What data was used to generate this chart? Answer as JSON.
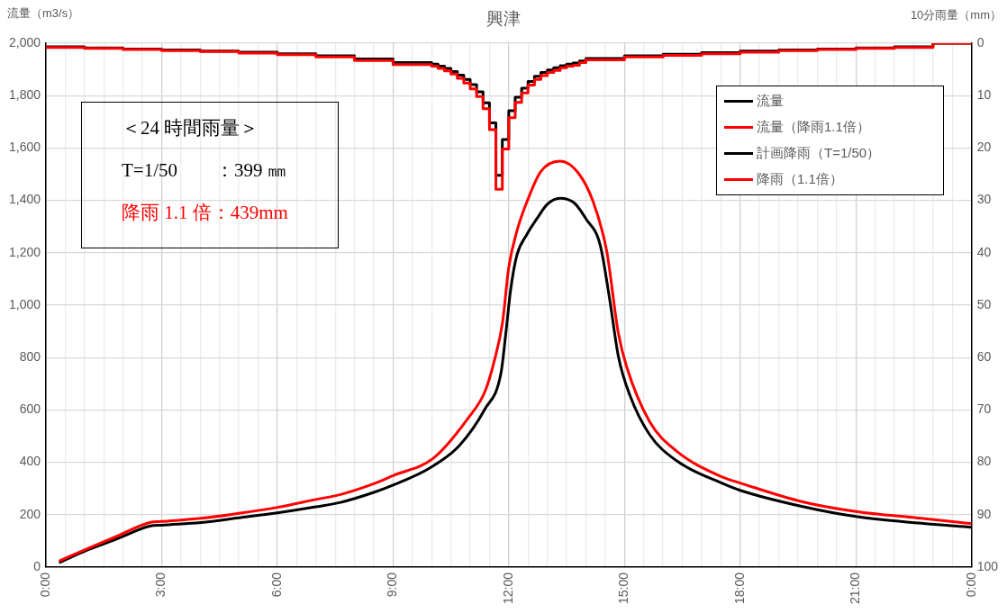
{
  "chart_data": {
    "type": "line",
    "title": "興津",
    "ylabel": "流量（m3/s）",
    "y2label": "10分雨量（mm）",
    "annotations": [
      "＜24 時間雨量＞",
      "T=1/50　　：399 ㎜",
      "降雨 1.1 倍：439mm"
    ],
    "series": [
      {
        "name": "流量",
        "color": "#000000",
        "x": [
          0.34,
          0.99,
          1.8,
          2.69,
          3,
          4.02,
          5,
          6,
          7,
          7.64,
          8.5,
          9,
          9.96,
          10.72,
          11.38,
          11.8,
          11.92,
          12.05,
          12.21,
          12.47,
          12.73,
          13.0,
          13.33,
          13.7,
          14.0,
          14.37,
          14.62,
          14.84,
          15.14,
          15.65,
          16.35,
          17.55,
          18,
          19.62,
          21,
          22.63,
          24
        ],
        "values": [
          17,
          60,
          105,
          156,
          160,
          170,
          188,
          207,
          230,
          247,
          285,
          313,
          379,
          464,
          603,
          742,
          887,
          1060,
          1190,
          1270,
          1330,
          1385,
          1408,
          1390,
          1330,
          1230,
          1019,
          806,
          656,
          506,
          406,
          319,
          293,
          231,
          193,
          168,
          152
        ]
      },
      {
        "name": "流量（降雨1.1倍）",
        "color": "#ff0000",
        "x": [
          0.34,
          0.99,
          1.8,
          2.69,
          3,
          4.02,
          5,
          6,
          7,
          7.64,
          8.5,
          9,
          10.05,
          10.97,
          11.38,
          11.63,
          11.84,
          12.0,
          12.21,
          12.47,
          12.83,
          13.33,
          13.8,
          14.19,
          14.54,
          14.84,
          15.05,
          15.65,
          16.35,
          17.55,
          18,
          19.62,
          21,
          22.63,
          24
        ],
        "values": [
          23,
          65,
          115,
          170,
          174,
          186,
          205,
          228,
          258,
          277,
          318,
          349,
          416,
          573,
          669,
          790,
          935,
          1144,
          1282,
          1394,
          1510,
          1550,
          1505,
          1394,
          1206,
          894,
          768,
          556,
          443,
          343,
          321,
          249,
          212,
          187,
          166
        ]
      },
      {
        "name": "計画降雨（T=1/50）",
        "color": "#000000",
        "type": "step",
        "axis": "y2",
        "x": [
          0,
          1,
          2,
          3,
          4,
          5,
          6,
          7,
          8,
          9,
          10,
          10.1667,
          10.3333,
          10.5,
          10.6667,
          10.8333,
          11,
          11.1667,
          11.3333,
          11.5,
          11.6667,
          11.8333,
          12,
          12.1667,
          12.3333,
          12.5,
          12.6667,
          12.8333,
          13,
          13.1667,
          13.3333,
          13.5,
          13.6667,
          13.8333,
          14,
          15,
          16,
          17,
          18,
          19,
          20,
          21,
          22,
          23,
          24
        ],
        "values": [
          0.6,
          0.7,
          0.9,
          1.1,
          1.3,
          1.5,
          1.7,
          2.0,
          2.4,
          3.0,
          3.7,
          4.0,
          4.4,
          4.8,
          5.4,
          6.1,
          6.9,
          7.9,
          9.3,
          11.4,
          15.2,
          25.2,
          18.4,
          12.9,
          10.3,
          8.6,
          7.3,
          6.3,
          5.6,
          5.1,
          4.7,
          4.3,
          4.0,
          3.8,
          3.4,
          2.9,
          2.4,
          2.1,
          1.8,
          1.5,
          1.3,
          1.1,
          0.9,
          0.7,
          0
        ]
      },
      {
        "name": "降雨（1.1倍）",
        "color": "#ff0000",
        "type": "step",
        "axis": "y2",
        "x": [
          0,
          1,
          2,
          3,
          4,
          5,
          6,
          7,
          8,
          9,
          10,
          10.1667,
          10.3333,
          10.5,
          10.6667,
          10.8333,
          11,
          11.1667,
          11.3333,
          11.5,
          11.6667,
          11.8333,
          12,
          12.1667,
          12.3333,
          12.5,
          12.6667,
          12.8333,
          13,
          13.1667,
          13.3333,
          13.5,
          13.6667,
          13.8333,
          14,
          15,
          16,
          17,
          18,
          19,
          20,
          21,
          22,
          23,
          24
        ],
        "values": [
          0.7,
          0.8,
          1.0,
          1.2,
          1.4,
          1.6,
          1.9,
          2.2,
          2.6,
          3.3,
          4.1,
          4.4,
          4.8,
          5.3,
          5.9,
          6.7,
          7.6,
          8.7,
          10.2,
          12.5,
          16.5,
          27.9,
          20.2,
          14.2,
          11.3,
          9.5,
          8.0,
          6.9,
          6.2,
          5.6,
          5.2,
          4.7,
          4.4,
          4.2,
          3.7,
          3.2,
          2.6,
          2.3,
          2.0,
          1.7,
          1.4,
          1.2,
          1.0,
          0.8,
          0
        ]
      }
    ],
    "xlim": [
      0,
      24
    ],
    "xticks": [
      {
        "value": 0,
        "label": "0:00"
      },
      {
        "value": 0.5,
        "label": null
      },
      {
        "value": 1,
        "label": null
      },
      {
        "value": 1.5,
        "label": null
      },
      {
        "value": 2,
        "label": null
      },
      {
        "value": 2.5,
        "label": null
      },
      {
        "value": 3,
        "label": "3:00"
      },
      {
        "value": 3.5,
        "label": null
      },
      {
        "value": 4,
        "label": null
      },
      {
        "value": 4.5,
        "label": null
      },
      {
        "value": 5,
        "label": null
      },
      {
        "value": 5.5,
        "label": null
      },
      {
        "value": 6,
        "label": "6:00"
      },
      {
        "value": 6.5,
        "label": null
      },
      {
        "value": 7,
        "label": null
      },
      {
        "value": 7.5,
        "label": null
      },
      {
        "value": 8,
        "label": null
      },
      {
        "value": 8.5,
        "label": null
      },
      {
        "value": 9,
        "label": "9:00"
      },
      {
        "value": 9.5,
        "label": null
      },
      {
        "value": 10,
        "label": null
      },
      {
        "value": 10.5,
        "label": null
      },
      {
        "value": 11,
        "label": null
      },
      {
        "value": 11.5,
        "label": null
      },
      {
        "value": 12,
        "label": "12:00"
      },
      {
        "value": 12.5,
        "label": null
      },
      {
        "value": 13,
        "label": null
      },
      {
        "value": 13.5,
        "label": null
      },
      {
        "value": 14,
        "label": null
      },
      {
        "value": 14.5,
        "label": null
      },
      {
        "value": 15,
        "label": "15:00"
      },
      {
        "value": 15.5,
        "label": null
      },
      {
        "value": 16,
        "label": null
      },
      {
        "value": 16.5,
        "label": null
      },
      {
        "value": 17,
        "label": null
      },
      {
        "value": 17.5,
        "label": null
      },
      {
        "value": 18,
        "label": "18:00"
      },
      {
        "value": 18.5,
        "label": null
      },
      {
        "value": 19,
        "label": null
      },
      {
        "value": 19.5,
        "label": null
      },
      {
        "value": 20,
        "label": null
      },
      {
        "value": 20.5,
        "label": null
      },
      {
        "value": 21,
        "label": "21:00"
      },
      {
        "value": 21.5,
        "label": null
      },
      {
        "value": 22,
        "label": null
      },
      {
        "value": 22.5,
        "label": null
      },
      {
        "value": 23,
        "label": null
      },
      {
        "value": 23.5,
        "label": null
      },
      {
        "value": 24,
        "label": "0:00"
      }
    ],
    "ylim": [
      0,
      2000
    ],
    "yticks": [
      0,
      200,
      400,
      600,
      800,
      {
        "value": 1000,
        "label": "1,000"
      },
      {
        "value": 1200,
        "label": "1,200"
      },
      {
        "value": 1400,
        "label": "1,400"
      },
      {
        "value": 1600,
        "label": "1,600"
      },
      {
        "value": 1800,
        "label": "1,800"
      },
      {
        "value": 2000,
        "label": "2,000"
      }
    ],
    "y2lim": [
      100,
      0
    ],
    "y2ticks": [
      0,
      10,
      20,
      30,
      40,
      50,
      60,
      70,
      80,
      90,
      100
    ],
    "grid": true,
    "legend": "top right",
    "marker": "none",
    "line_style": "solid"
  }
}
